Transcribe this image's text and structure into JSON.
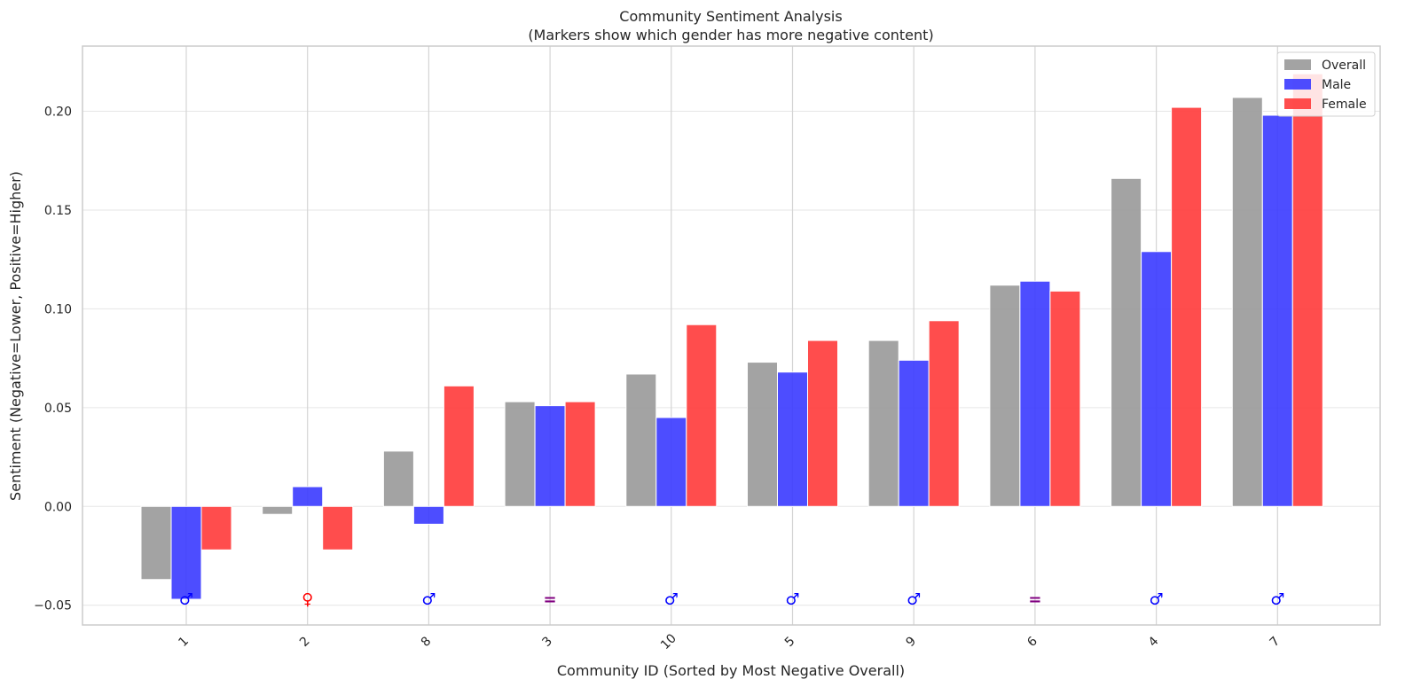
{
  "chart_data": {
    "type": "bar",
    "title": "Community Sentiment Analysis",
    "subtitle": "(Markers show which gender has more negative content)",
    "xlabel": "Community ID (Sorted by Most Negative Overall)",
    "ylabel": "Sentiment (Negative=Lower, Positive=Higher)",
    "categories": [
      "1",
      "2",
      "8",
      "3",
      "10",
      "5",
      "9",
      "6",
      "4",
      "7"
    ],
    "ylim": [
      -0.06,
      0.233
    ],
    "yticks": [
      -0.05,
      0.0,
      0.05,
      0.1,
      0.15,
      0.2
    ],
    "ytick_labels": [
      "−0.05",
      "0.00",
      "0.05",
      "0.10",
      "0.15",
      "0.20"
    ],
    "grid": true,
    "legend_position": "top-right",
    "series": [
      {
        "name": "Overall",
        "color": "#999999",
        "values": [
          -0.037,
          -0.004,
          0.028,
          0.053,
          0.067,
          0.073,
          0.084,
          0.112,
          0.166,
          0.207
        ]
      },
      {
        "name": "Male",
        "color": "#3a3aff",
        "values": [
          -0.047,
          0.01,
          -0.009,
          0.051,
          0.045,
          0.068,
          0.074,
          0.114,
          0.129,
          0.198
        ]
      },
      {
        "name": "Female",
        "color": "#ff3a3a",
        "values": [
          -0.022,
          -0.022,
          0.061,
          0.053,
          0.092,
          0.084,
          0.094,
          0.109,
          0.202,
          0.219
        ]
      }
    ],
    "markers": {
      "y": -0.047,
      "symbols": [
        "♂",
        "♀",
        "♂",
        "=",
        "♂",
        "♂",
        "♂",
        "=",
        "♂",
        "♂"
      ],
      "colors": {
        "♂": "#0000ff",
        "♀": "#ff0000",
        "=": "#800080"
      }
    }
  }
}
